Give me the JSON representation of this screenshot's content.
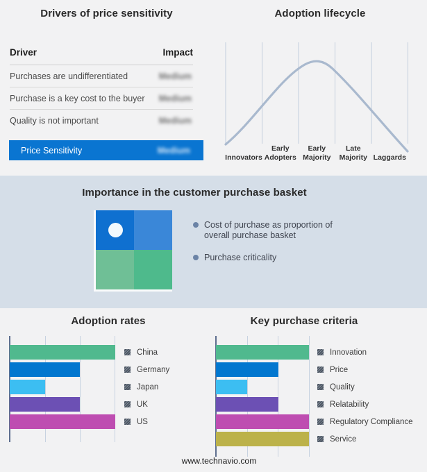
{
  "drivers_panel": {
    "title": "Drivers of price sensitivity",
    "col_driver": "Driver",
    "col_impact": "Impact",
    "rows": [
      {
        "driver": "Purchases are undifferentiated",
        "impact": "Medium"
      },
      {
        "driver": "Purchase is a key cost to the buyer",
        "impact": "Medium"
      },
      {
        "driver": "Quality is not important",
        "impact": "Medium"
      }
    ],
    "highlight": {
      "driver": "Price Sensitivity",
      "impact": "Medium",
      "bg_color": "#0a75d1"
    },
    "impact_values_blurred": true
  },
  "basket_panel": {
    "title": "Importance in the customer purchase basket",
    "bullets": [
      "Cost of purchase as proportion of overall purchase basket",
      "Purchase criticality"
    ],
    "quadrant_colors": {
      "top_left": "#0f70d0",
      "top_right": "#3a87d8",
      "bottom_left": "#6fbf96",
      "bottom_right": "#4eba8c"
    },
    "band_color": "#d5dee8"
  },
  "footer": {
    "url": "www.technavio.com"
  },
  "chart_data": [
    {
      "type": "line",
      "title": "Adoption lifecycle",
      "x_labels": [
        "Innovators",
        "Early Adopters",
        "Early Majority",
        "Late Majority",
        "Laggards"
      ],
      "description": "Bell-shaped adoption curve rising through Innovators and Early Adopters, peaking over Early Majority, declining through Late Majority and Laggards",
      "grid": "5 vertical segment dividers, no y axis",
      "color": "#a9b9ce"
    },
    {
      "type": "bar",
      "orientation": "horizontal",
      "title": "Adoption rates",
      "categories": [
        "China",
        "Germany",
        "Japan",
        "UK",
        "US"
      ],
      "values": [
        3,
        2,
        1,
        2,
        3
      ],
      "colors": [
        "#50b98e",
        "#0277cf",
        "#3cbef2",
        "#6c50b4",
        "#be4db1"
      ],
      "xlim": [
        0,
        3
      ],
      "x_unit": "relative gridline units (no numeric tick labels shown)",
      "grid": true,
      "legend_position": "right"
    },
    {
      "type": "bar",
      "orientation": "horizontal",
      "title": "Key purchase criteria",
      "categories": [
        "Innovation",
        "Price",
        "Quality",
        "Relatability",
        "Regulatory Compliance",
        "Service"
      ],
      "values": [
        3,
        2,
        1,
        2,
        3,
        3
      ],
      "colors": [
        "#50b98e",
        "#0277cf",
        "#3cbef2",
        "#6c50b4",
        "#be4db1",
        "#bcb24a"
      ],
      "xlim": [
        0,
        3
      ],
      "x_unit": "relative gridline units (no numeric tick labels shown)",
      "grid": true,
      "legend_position": "right"
    }
  ]
}
